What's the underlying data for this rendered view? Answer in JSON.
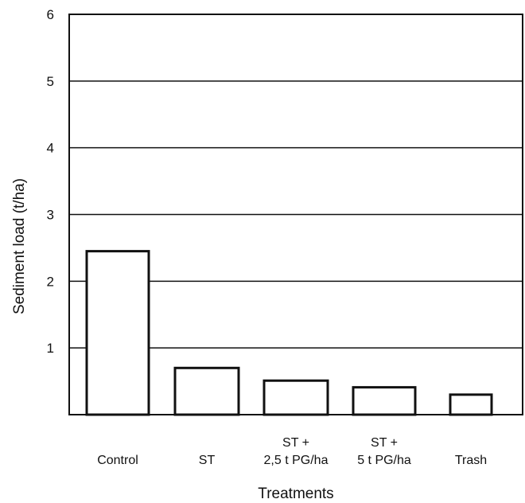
{
  "chart_data": {
    "type": "bar",
    "title": "",
    "xlabel": "Treatments",
    "ylabel": "Sediment load (t/ha)",
    "ylim": [
      0,
      6
    ],
    "yticks": [
      1,
      2,
      3,
      4,
      5,
      6
    ],
    "grid": true,
    "categories": [
      [
        "Control"
      ],
      [
        "ST"
      ],
      [
        "ST +",
        "2,5 t PG/ha"
      ],
      [
        "ST +",
        "5 t PG/ha"
      ],
      [
        "Trash"
      ]
    ],
    "values": [
      2.45,
      0.7,
      0.51,
      0.41,
      0.3
    ],
    "colors": {
      "bar_fill": "#ffffff",
      "bar_stroke": "#111111",
      "grid": "#111111",
      "axis": "#111111"
    }
  }
}
